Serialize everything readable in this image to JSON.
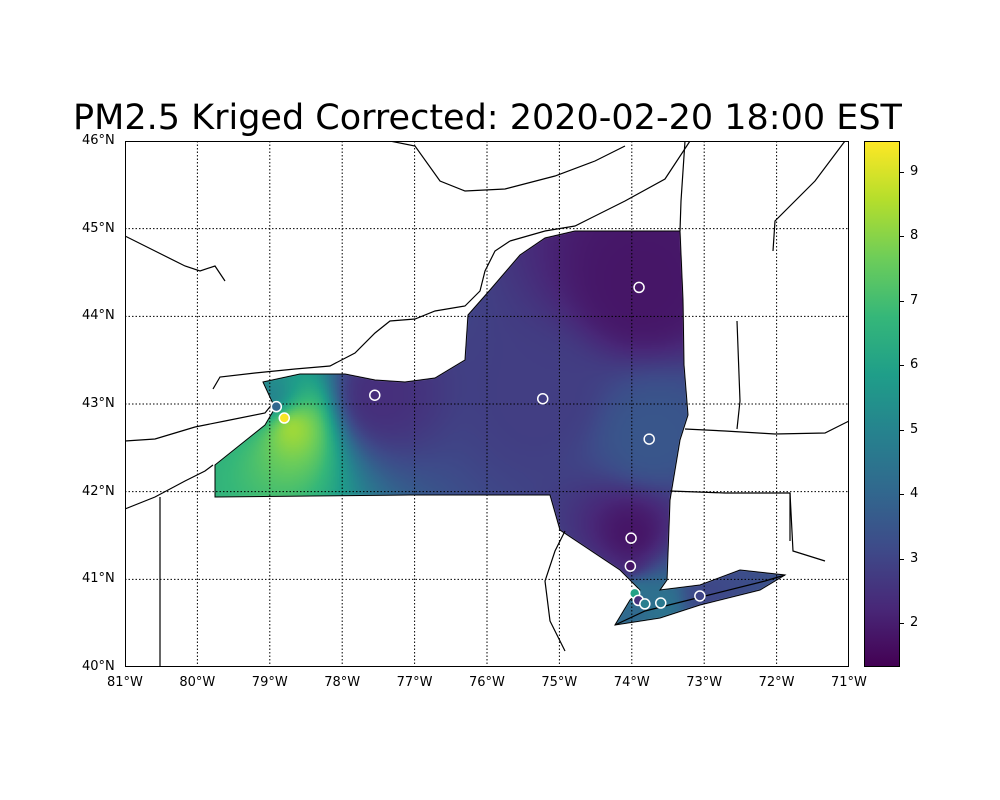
{
  "title": "PM2.5 Kriged Corrected: 2020-02-20 18:00 EST",
  "map": {
    "lon_range": [
      -81,
      -71
    ],
    "lat_range": [
      40,
      46
    ],
    "lon_ticks": [
      "81°W",
      "80°W",
      "79°W",
      "78°W",
      "77°W",
      "76°W",
      "75°W",
      "74°W",
      "73°W",
      "72°W",
      "71°W"
    ],
    "lat_ticks": [
      "40°N",
      "41°N",
      "42°N",
      "43°N",
      "44°N",
      "45°N",
      "46°N"
    ],
    "gridlines": "dotted",
    "region": "New York State"
  },
  "colorbar": {
    "colormap": "viridis",
    "range": [
      1.32,
      9.48
    ],
    "ticks": [
      "2",
      "3",
      "4",
      "5",
      "6",
      "7",
      "8",
      "9"
    ]
  },
  "stations": [
    {
      "lon": -78.91,
      "lat": 42.97,
      "value": 4.0
    },
    {
      "lon": -78.8,
      "lat": 42.84,
      "value": 9.4
    },
    {
      "lon": -77.55,
      "lat": 43.1,
      "value": 2.4
    },
    {
      "lon": -75.23,
      "lat": 43.06,
      "value": 2.8
    },
    {
      "lon": -73.9,
      "lat": 44.33,
      "value": 1.8
    },
    {
      "lon": -73.76,
      "lat": 42.6,
      "value": 3.5
    },
    {
      "lon": -74.01,
      "lat": 41.47,
      "value": 1.7
    },
    {
      "lon": -74.02,
      "lat": 41.15,
      "value": 1.8
    },
    {
      "lon": -73.96,
      "lat": 40.84,
      "value": 6.0
    },
    {
      "lon": -73.91,
      "lat": 40.76,
      "value": 2.5
    },
    {
      "lon": -73.82,
      "lat": 40.72,
      "value": 4.8
    },
    {
      "lon": -73.6,
      "lat": 40.73,
      "value": 4.6
    },
    {
      "lon": -73.06,
      "lat": 40.81,
      "value": 3.0
    }
  ]
}
